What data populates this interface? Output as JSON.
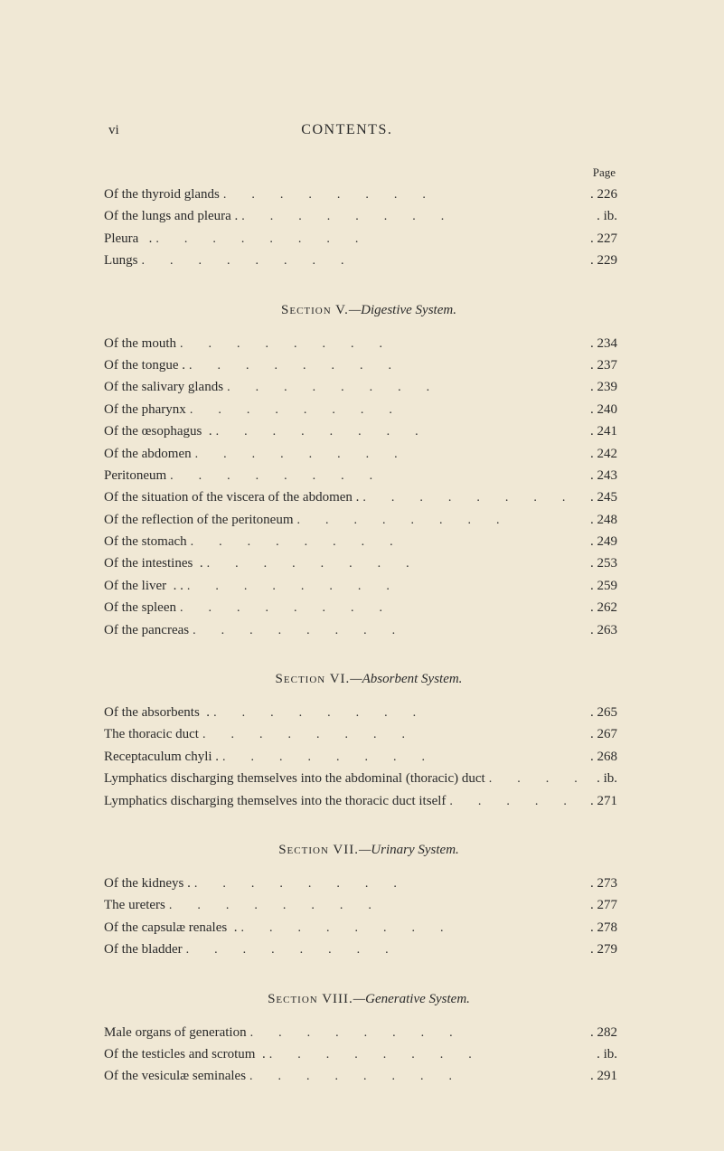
{
  "header": {
    "page_roman": "vi",
    "running_title": "CONTENTS."
  },
  "page_label": "Page",
  "block1": [
    {
      "title": "Of the thyroid glands",
      "page": "226"
    },
    {
      "title": "Of the lungs and pleura .",
      "page": "ib."
    },
    {
      "title": "Pleura   .",
      "page": "227"
    },
    {
      "title": "Lungs",
      "page": "229"
    }
  ],
  "section5": {
    "heading_sc": "Section V.",
    "heading_it": "—Digestive System."
  },
  "block2": [
    {
      "title": "Of the mouth",
      "page": "234"
    },
    {
      "title": "Of the tongue .",
      "page": "237"
    },
    {
      "title": "Of the salivary glands",
      "page": "239"
    },
    {
      "title": "Of the pharynx",
      "page": "240"
    },
    {
      "title": "Of the œsophagus  .",
      "page": "241"
    },
    {
      "title": "Of the abdomen",
      "page": "242"
    },
    {
      "title": "Peritoneum",
      "page": "243"
    },
    {
      "title": "Of the situation of the viscera of the abdomen .",
      "page": "245"
    },
    {
      "title": "Of the reflection of the peritoneum",
      "page": "248"
    },
    {
      "title": "Of the stomach",
      "page": "249"
    },
    {
      "title": "Of the intestines  .",
      "page": "253"
    },
    {
      "title": "Of the liver  . .",
      "page": "259"
    },
    {
      "title": "Of the spleen",
      "page": "262"
    },
    {
      "title": "Of the pancreas",
      "page": "263"
    }
  ],
  "section6": {
    "heading_sc": "Section VI.",
    "heading_it": "—Absorbent System."
  },
  "block3": [
    {
      "title": "Of the absorbents  .",
      "page": "265"
    },
    {
      "title": "The thoracic duct",
      "page": "267"
    },
    {
      "title": "Receptaculum chyli .",
      "page": "268"
    },
    {
      "title": "Lymphatics discharging themselves into the abdominal (thoracic) duct",
      "page": "ib."
    },
    {
      "title": "Lymphatics discharging themselves into the thoracic duct itself",
      "page": "271"
    }
  ],
  "section7": {
    "heading_sc": "Section VII.",
    "heading_it": "—Urinary System."
  },
  "block4": [
    {
      "title": "Of the kidneys .",
      "page": "273"
    },
    {
      "title": "The ureters",
      "page": "277"
    },
    {
      "title": "Of the capsulæ renales  .",
      "page": "278"
    },
    {
      "title": "Of the bladder",
      "page": "279"
    }
  ],
  "section8": {
    "heading_sc": "Section VIII.",
    "heading_it": "—Generative System."
  },
  "block5": [
    {
      "title": "Male organs of generation",
      "page": "282"
    },
    {
      "title": "Of the testicles and scrotum  .",
      "page": "ib."
    },
    {
      "title": "Of the vesiculæ seminales",
      "page": "291"
    }
  ]
}
